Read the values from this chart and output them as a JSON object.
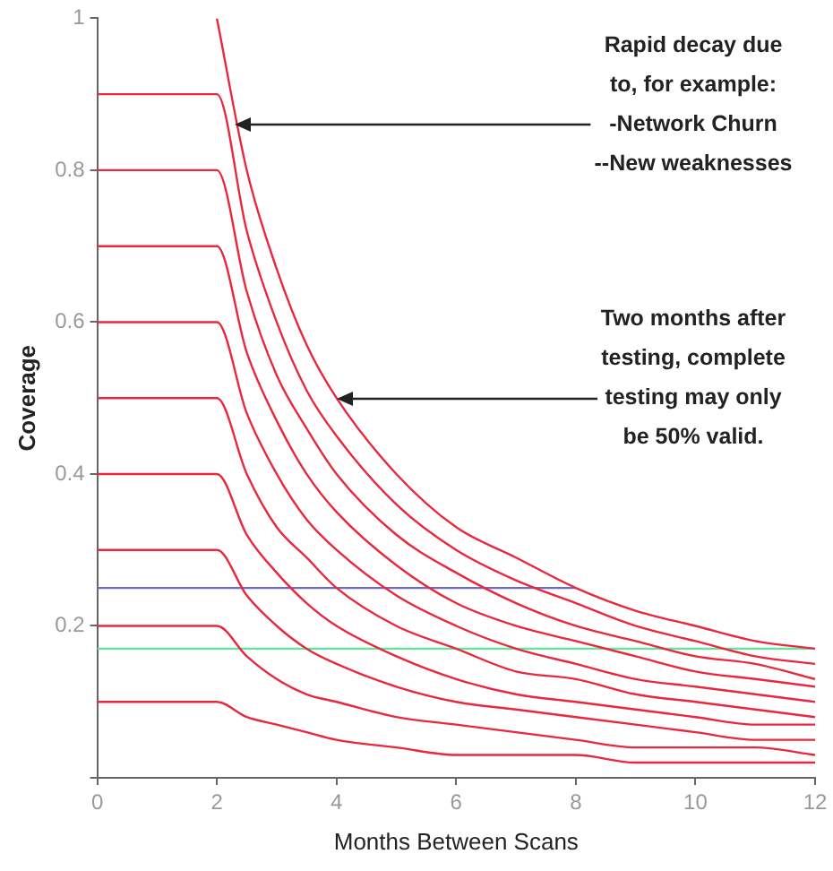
{
  "chart_data": {
    "type": "line",
    "xlabel": "Months Between Scans",
    "ylabel": "Coverage",
    "x": [
      0,
      2,
      2.5,
      3,
      3.5,
      4,
      5,
      6,
      7,
      8,
      9,
      10,
      11,
      12
    ],
    "series": [
      {
        "color": "#e8283c",
        "values": [
          null,
          1,
          0.8,
          0.67,
          0.57,
          0.5,
          0.4,
          0.33,
          0.29,
          0.25,
          0.22,
          0.2,
          0.18,
          0.17
        ]
      },
      {
        "color": "#e8283c",
        "values": [
          0.9,
          0.9,
          0.72,
          0.6,
          0.51,
          0.45,
          0.36,
          0.3,
          0.26,
          0.23,
          0.2,
          0.18,
          0.16,
          0.15
        ]
      },
      {
        "color": "#e8283c",
        "values": [
          0.8,
          0.8,
          0.64,
          0.53,
          0.46,
          0.4,
          0.32,
          0.27,
          0.23,
          0.2,
          0.18,
          0.16,
          0.15,
          0.13
        ]
      },
      {
        "color": "#e8283c",
        "values": [
          0.7,
          0.7,
          0.56,
          0.47,
          0.4,
          0.35,
          0.28,
          0.23,
          0.2,
          0.18,
          0.16,
          0.14,
          0.13,
          0.12
        ]
      },
      {
        "color": "#e8283c",
        "values": [
          0.6,
          0.6,
          0.48,
          0.4,
          0.34,
          0.3,
          0.24,
          0.2,
          0.17,
          0.15,
          0.13,
          0.12,
          0.11,
          0.1
        ]
      },
      {
        "color": "#e8283c",
        "values": [
          0.5,
          0.5,
          0.4,
          0.33,
          0.29,
          0.25,
          0.2,
          0.17,
          0.14,
          0.13,
          0.11,
          0.1,
          0.09,
          0.08
        ]
      },
      {
        "color": "#e8283c",
        "values": [
          0.4,
          0.4,
          0.32,
          0.27,
          0.23,
          0.2,
          0.16,
          0.13,
          0.11,
          0.1,
          0.09,
          0.08,
          0.07,
          0.07
        ]
      },
      {
        "color": "#e8283c",
        "values": [
          0.3,
          0.3,
          0.24,
          0.2,
          0.17,
          0.15,
          0.12,
          0.1,
          0.09,
          0.08,
          0.07,
          0.06,
          0.05,
          0.05
        ]
      },
      {
        "color": "#e8283c",
        "values": [
          0.2,
          0.2,
          0.16,
          0.13,
          0.11,
          0.1,
          0.08,
          0.07,
          0.06,
          0.05,
          0.04,
          0.04,
          0.04,
          0.03
        ]
      },
      {
        "color": "#e8283c",
        "values": [
          0.1,
          0.1,
          0.08,
          0.07,
          0.06,
          0.05,
          0.04,
          0.03,
          0.03,
          0.03,
          0.02,
          0.02,
          0.02,
          0.02
        ]
      },
      {
        "color": "#6a6ac8",
        "x": [
          0,
          8
        ],
        "values": [
          0.25,
          0.25
        ]
      },
      {
        "color": "#5ee89a",
        "x": [
          0,
          12
        ],
        "values": [
          0.17,
          0.17
        ]
      }
    ],
    "xlim": [
      0,
      12
    ],
    "xticks": [
      0,
      2,
      4,
      6,
      8,
      10,
      12
    ],
    "ylim": [
      0,
      1
    ],
    "yticks": [
      {
        "value": 0,
        "label": null
      },
      0.2,
      0.4,
      0.6,
      0.8,
      1
    ],
    "grid": false,
    "legend": false,
    "marker": "none",
    "line_style": "solid",
    "annotations": [
      {
        "text": "Rapid decay due\nto, for example:\n-Network Churn\n--New weaknesses",
        "x": 2.3,
        "y": 0.86
      },
      {
        "text": "Two months after\ntesting, complete\ntesting may only\nbe 50% valid.",
        "x": 4,
        "y": 0.5
      }
    ]
  }
}
